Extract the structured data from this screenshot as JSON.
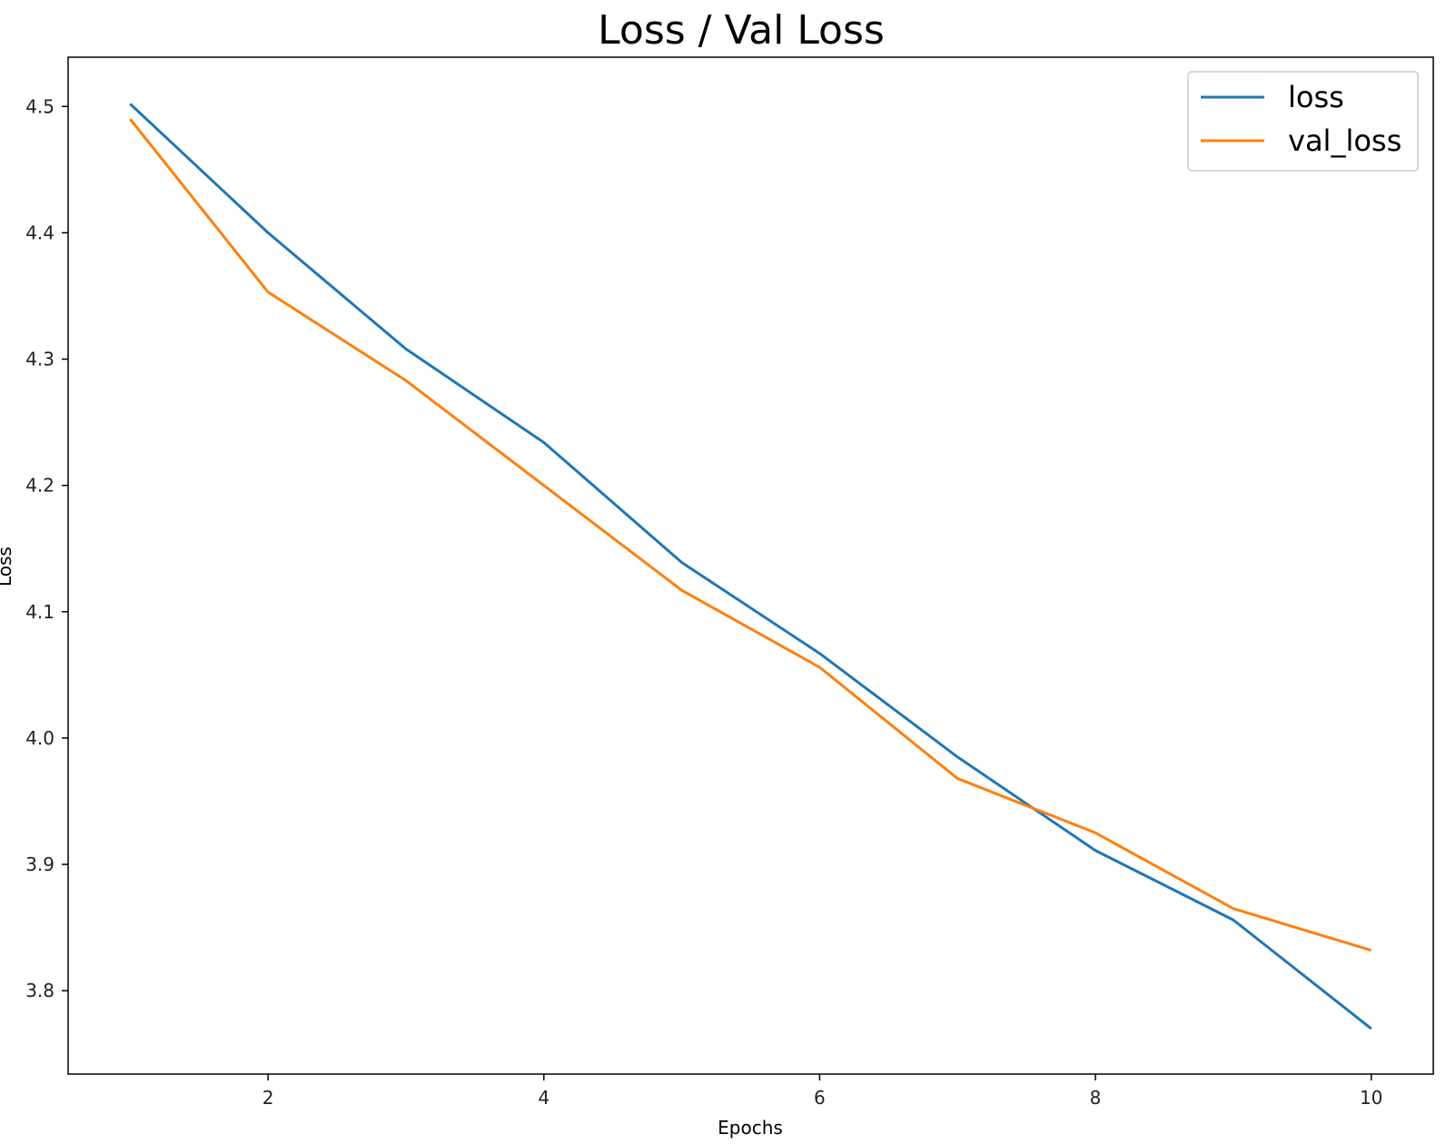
{
  "chart_data": {
    "type": "line",
    "title": "Loss / Val Loss",
    "xlabel": "Epochs",
    "ylabel": "Loss",
    "x": [
      1,
      2,
      3,
      4,
      5,
      6,
      7,
      8,
      9,
      10
    ],
    "xlim": [
      0.55,
      10.45
    ],
    "ylim": [
      3.734,
      4.539
    ],
    "xticks": [
      2,
      4,
      6,
      8,
      10
    ],
    "xtick_labels": [
      "2",
      "4",
      "6",
      "8",
      "10"
    ],
    "yticks": [
      3.8,
      3.9,
      4.0,
      4.1,
      4.2,
      4.3,
      4.4,
      4.5
    ],
    "ytick_labels": [
      "3.8",
      "3.9",
      "4.0",
      "4.1",
      "4.2",
      "4.3",
      "4.4",
      "4.5"
    ],
    "grid": false,
    "legend_position": "top-right",
    "series": [
      {
        "name": "loss",
        "color": "#1f77b4",
        "values": [
          4.502,
          4.4,
          4.308,
          4.234,
          4.139,
          4.067,
          3.985,
          3.911,
          3.856,
          3.77
        ]
      },
      {
        "name": "val_loss",
        "color": "#ff7f0e",
        "values": [
          4.49,
          4.353,
          4.283,
          4.2,
          4.117,
          4.056,
          3.968,
          3.925,
          3.865,
          3.832
        ]
      }
    ]
  }
}
